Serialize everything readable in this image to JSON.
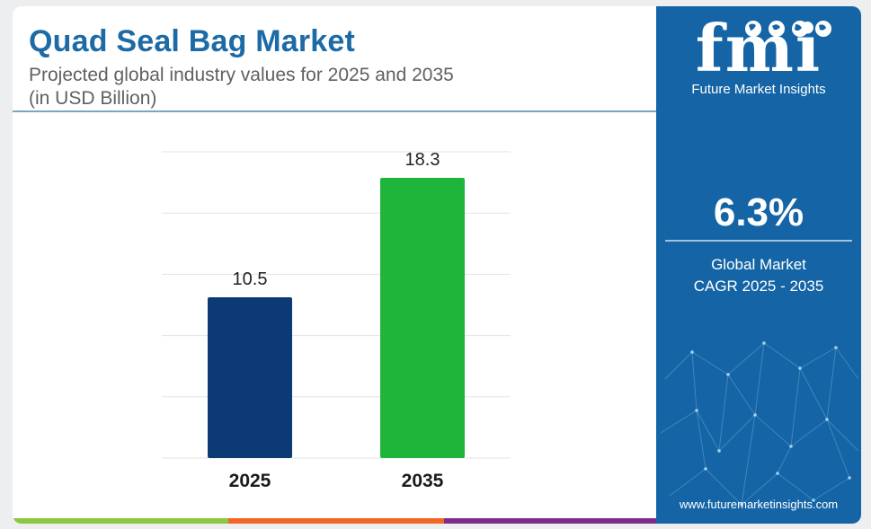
{
  "header": {
    "title": "Quad Seal Bag Market",
    "subtitle_line1": "Projected global industry values for 2025 and 2035",
    "subtitle_line2": "(in USD Billion)"
  },
  "brand": {
    "logo_text": "fmi",
    "name": "Future Market Insights",
    "website": "www.futuremarketinsights.com"
  },
  "kpi": {
    "value": "6.3%",
    "label_line1": "Global Market",
    "label_line2": "CAGR 2025 - 2035"
  },
  "colors": {
    "title": "#1c6aa6",
    "panel": "#1565a6",
    "bar_2025": "#0b3a75",
    "bar_2035": "#1fb53a",
    "stripe": [
      "#8dc63f",
      "#f26522",
      "#7b2c8c"
    ]
  },
  "chart_data": {
    "type": "bar",
    "categories": [
      "2025",
      "2035"
    ],
    "values": [
      10.5,
      18.3
    ],
    "data_labels": [
      "10.5",
      "18.3"
    ],
    "title": "Quad Seal Bag Market",
    "ylabel": "",
    "xlabel": "",
    "ylim": [
      0,
      20
    ],
    "grid": true,
    "legend": "none"
  }
}
